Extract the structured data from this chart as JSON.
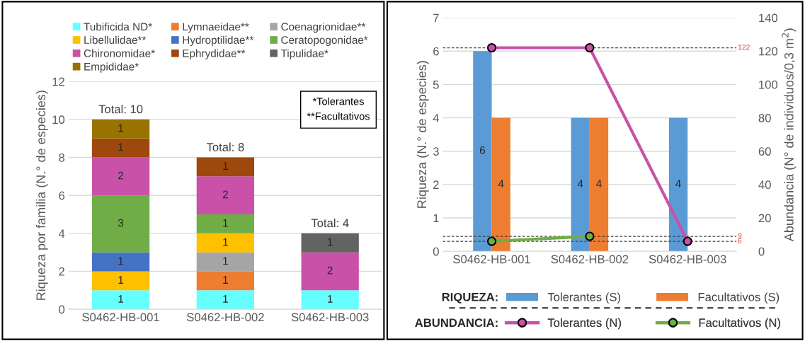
{
  "chart_data": [
    {
      "type": "bar",
      "stacked": true,
      "ylabel": "Riqueza por familia (N.° de especies)",
      "categories": [
        "S0462-HB-001",
        "S0462-HB-002",
        "S0462-HB-003"
      ],
      "series": [
        {
          "name": "Tubificida ND*",
          "color": "#66ffff",
          "values": [
            1,
            1,
            1
          ]
        },
        {
          "name": "Lymnaeidae**",
          "color": "#ed7d31",
          "values": [
            null,
            1,
            null
          ]
        },
        {
          "name": "Coenagrionidae**",
          "color": "#a5a5a5",
          "values": [
            null,
            1,
            null
          ]
        },
        {
          "name": "Libellulidae**",
          "color": "#ffc000",
          "values": [
            1,
            1,
            null
          ]
        },
        {
          "name": "Hydroptilidae**",
          "color": "#4472c4",
          "values": [
            1,
            null,
            null
          ]
        },
        {
          "name": "Ceratopogonidae*",
          "color": "#70ad47",
          "values": [
            3,
            1,
            null
          ]
        },
        {
          "name": "Chironomidae*",
          "color": "#c951a8",
          "values": [
            2,
            2,
            2
          ]
        },
        {
          "name": "Ephrydidae**",
          "color": "#9e480e",
          "values": [
            1,
            1,
            null
          ]
        },
        {
          "name": "Tipulidae*",
          "color": "#636363",
          "values": [
            null,
            null,
            1
          ]
        },
        {
          "name": "Empididae*",
          "color": "#997300",
          "values": [
            1,
            null,
            null
          ]
        }
      ],
      "ylim": [
        0,
        12
      ],
      "yticks": [
        0,
        2,
        4,
        6,
        8,
        10,
        12
      ],
      "grid": "y",
      "data_labels": true,
      "totals": [
        "Total: 10",
        "Total: 8",
        "Total: 4"
      ],
      "annotations": [
        "*Tolerantes\n**Facultativos"
      ],
      "legend": "top"
    },
    {
      "type": "bar",
      "ylabel": "Riqueza (N.° de especies)",
      "y2label": "Abundancia (N° de individuos/0,3 m$^{2}$)",
      "categories": [
        "S0462-HB-001",
        "S0462-HB-002",
        "S0462-HB-003"
      ],
      "series": [
        {
          "name": "Tolerantes (S)",
          "color": "#5b9bd5",
          "values": [
            6,
            4,
            4
          ],
          "value_labels": [
            "6",
            "4",
            "4"
          ]
        },
        {
          "name": "Facultativos (S)",
          "color": "#ed7d31",
          "values": [
            4,
            4,
            null
          ],
          "value_labels": [
            "4",
            "4",
            null
          ]
        },
        {
          "name": "Tolerantes (N)",
          "type": "line",
          "axis": "y2",
          "color": "#c951a8",
          "values": [
            122,
            122,
            6
          ]
        },
        {
          "name": "Facultativos (N)",
          "type": "line",
          "axis": "y2",
          "color": "#70ad47",
          "values": [
            6,
            9,
            null
          ]
        }
      ],
      "ylim": [
        0,
        7
      ],
      "yticks": [
        0,
        1,
        2,
        3,
        4,
        5,
        6,
        7
      ],
      "y2lim": [
        0,
        140
      ],
      "y2ticks": [
        0,
        20,
        40,
        60,
        80,
        100,
        120,
        140
      ],
      "grid": "y",
      "marker": "circle",
      "line_style": "solid",
      "ref_lines": [
        {
          "axis": "y2",
          "value": 122,
          "label": "122"
        },
        {
          "axis": "y2",
          "value": 9,
          "label": "9"
        },
        {
          "axis": "y2",
          "value": 6,
          "label": "6"
        }
      ],
      "annotations": [
        "RIQUEZA:",
        "ABUNDANCIA:"
      ],
      "legend": "bottom"
    }
  ]
}
